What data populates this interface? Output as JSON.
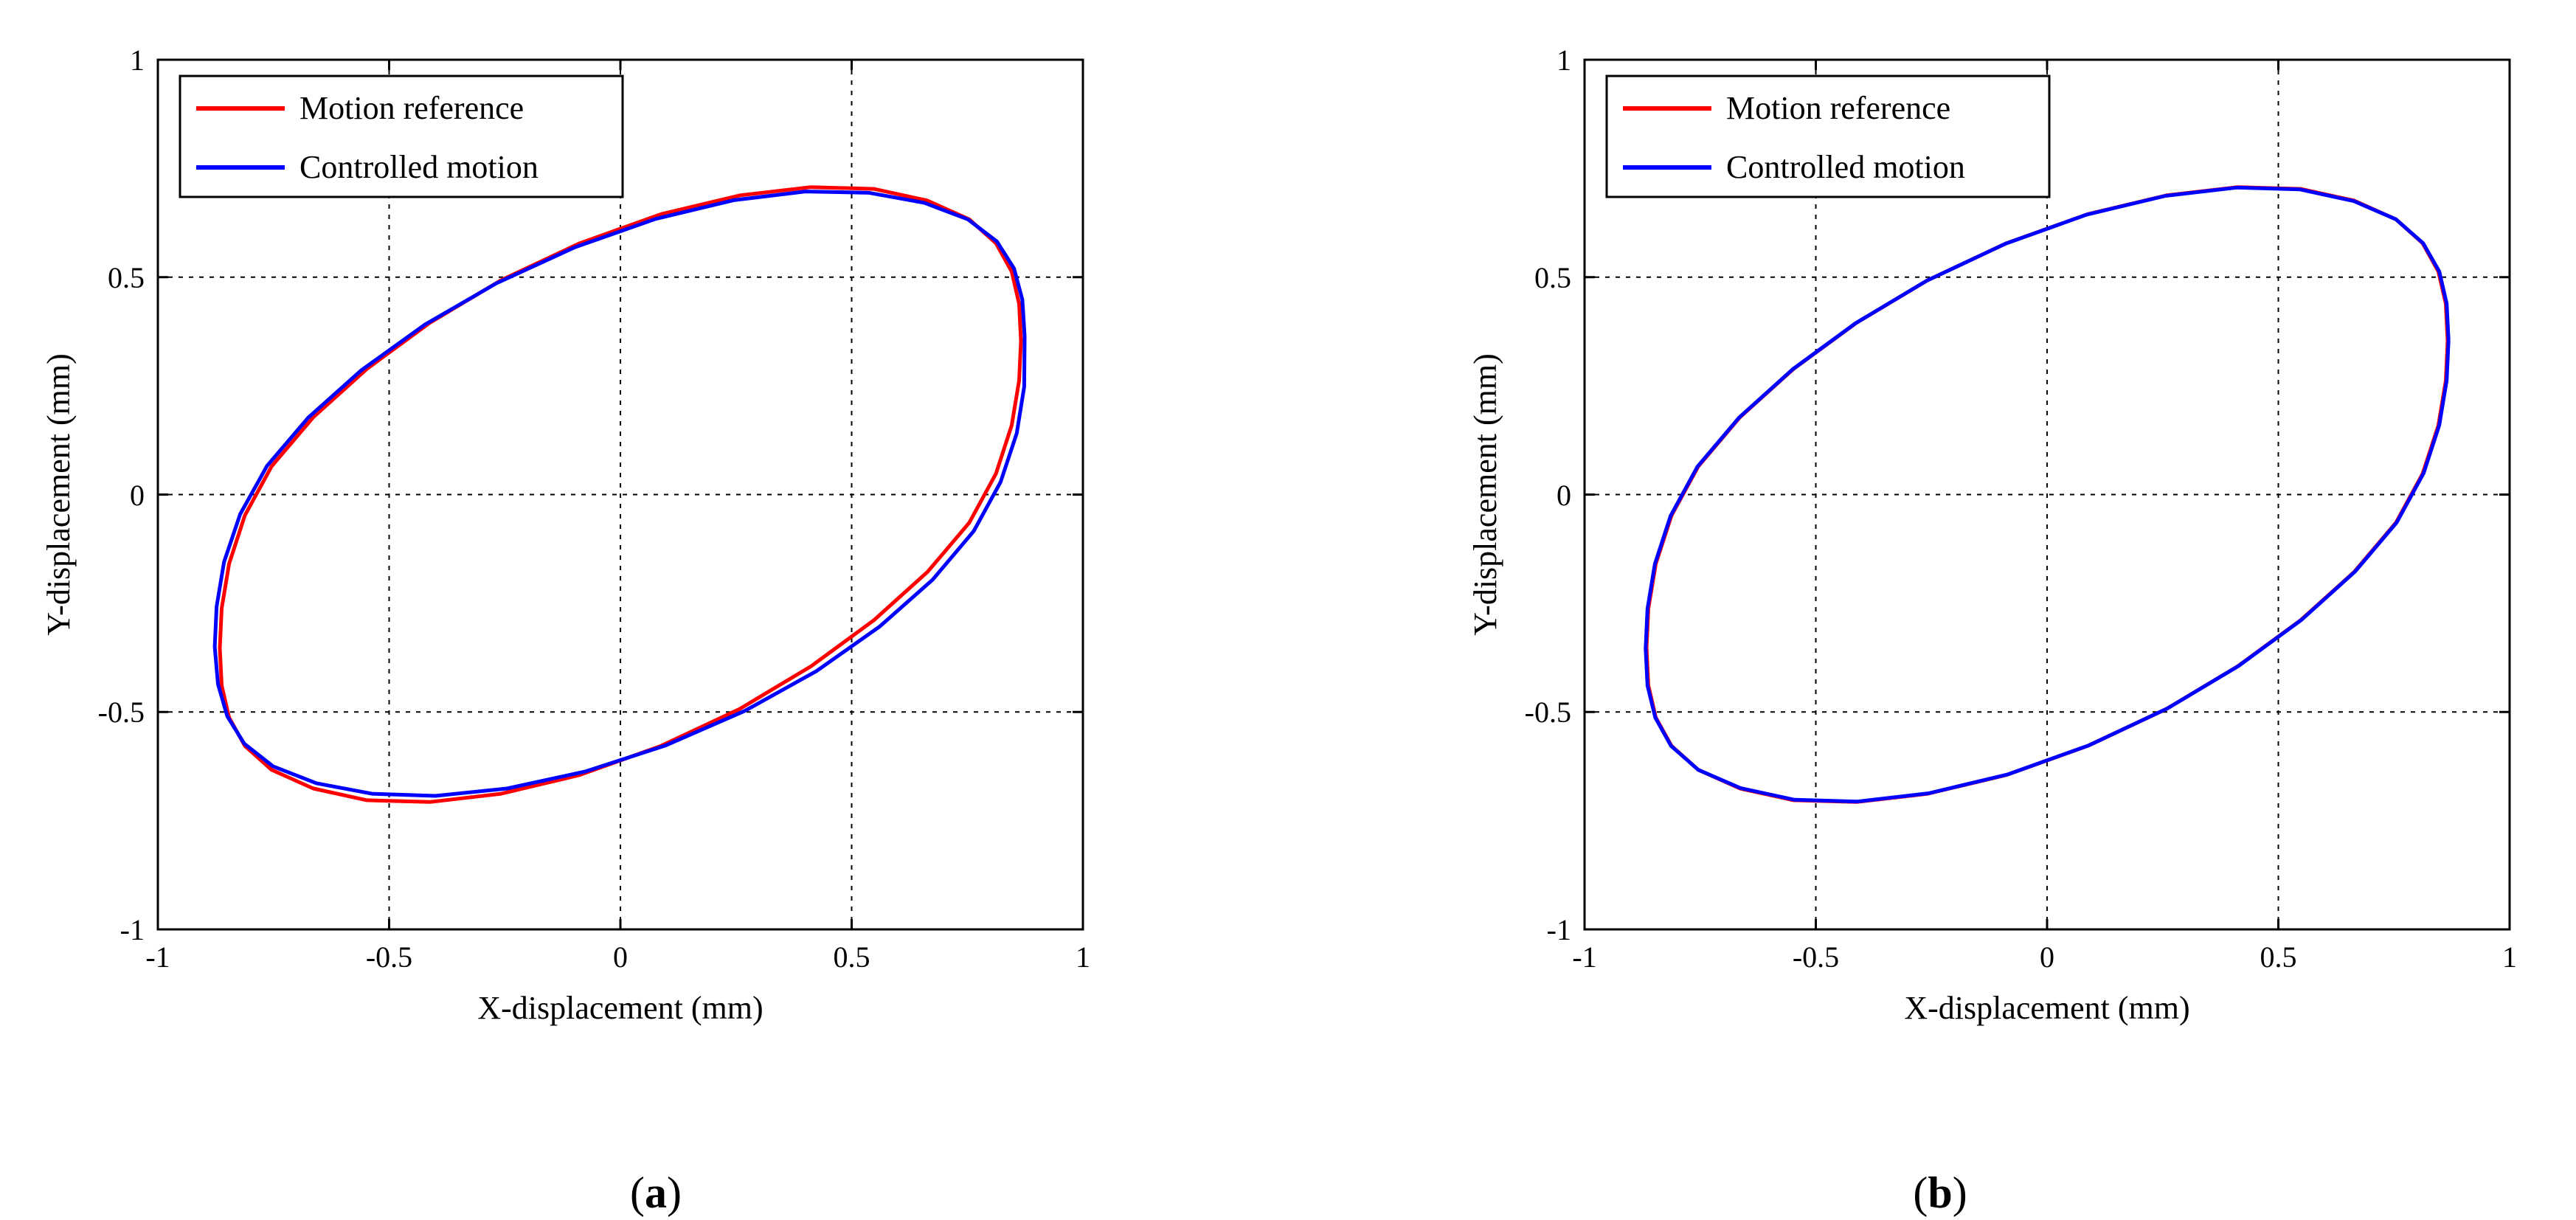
{
  "colors": {
    "reference": "#ff0000",
    "controlled": "#0000ff",
    "axis": "#000000",
    "grid": "#000000"
  },
  "chart_data": [
    {
      "type": "line",
      "panel_label": "a",
      "xlabel": "X-displacement (mm)",
      "ylabel": "Y-displacement (mm)",
      "xlim": [
        -1,
        1
      ],
      "ylim": [
        -1,
        1
      ],
      "xticks": [
        -1,
        -0.5,
        0,
        0.5,
        1
      ],
      "yticks": [
        -1,
        -0.5,
        0,
        0.5,
        1
      ],
      "xtick_labels": [
        "-1",
        "-0.5",
        "0",
        "0.5",
        "1"
      ],
      "ytick_labels": [
        "-1",
        "-0.5",
        "0",
        "0.5",
        "1"
      ],
      "grid": true,
      "legend": {
        "placement": "top-left",
        "entries": [
          "Motion reference",
          "Controlled motion"
        ]
      },
      "series": [
        {
          "name": "Motion reference",
          "x": [
            0.866,
            0.862,
            0.846,
            0.812,
            0.754,
            0.664,
            0.548,
            0.412,
            0.258,
            0.088,
            -0.088,
            -0.258,
            -0.412,
            -0.548,
            -0.664,
            -0.754,
            -0.812,
            -0.846,
            -0.862,
            -0.866,
            -0.862,
            -0.846,
            -0.812,
            -0.754,
            -0.664,
            -0.548,
            -0.412,
            -0.258,
            -0.088,
            0.088,
            0.258,
            0.412,
            0.548,
            0.664,
            0.754,
            0.812,
            0.846,
            0.862,
            0.866
          ],
          "y": [
            0.353,
            0.439,
            0.513,
            0.578,
            0.633,
            0.676,
            0.703,
            0.707,
            0.688,
            0.645,
            0.578,
            0.493,
            0.395,
            0.289,
            0.178,
            0.065,
            -0.048,
            -0.159,
            -0.262,
            -0.353,
            -0.439,
            -0.513,
            -0.578,
            -0.633,
            -0.676,
            -0.703,
            -0.707,
            -0.688,
            -0.645,
            -0.578,
            -0.493,
            -0.395,
            -0.289,
            -0.178,
            -0.065,
            0.048,
            0.159,
            0.262,
            0.353
          ]
        },
        {
          "name": "Controlled motion",
          "x": [
            0.874,
            0.869,
            0.851,
            0.814,
            0.751,
            0.657,
            0.538,
            0.4,
            0.245,
            0.076,
            -0.098,
            -0.268,
            -0.424,
            -0.56,
            -0.675,
            -0.764,
            -0.822,
            -0.857,
            -0.873,
            -0.877,
            -0.87,
            -0.85,
            -0.813,
            -0.751,
            -0.657,
            -0.537,
            -0.4,
            -0.245,
            -0.076,
            0.098,
            0.268,
            0.424,
            0.56,
            0.675,
            0.764,
            0.822,
            0.857,
            0.873,
            0.874
          ],
          "y": [
            0.364,
            0.448,
            0.52,
            0.582,
            0.633,
            0.671,
            0.694,
            0.697,
            0.677,
            0.634,
            0.569,
            0.486,
            0.39,
            0.286,
            0.177,
            0.066,
            -0.045,
            -0.155,
            -0.258,
            -0.35,
            -0.436,
            -0.51,
            -0.573,
            -0.625,
            -0.664,
            -0.688,
            -0.693,
            -0.676,
            -0.637,
            -0.577,
            -0.498,
            -0.406,
            -0.304,
            -0.196,
            -0.084,
            0.029,
            0.141,
            0.248,
            0.364
          ]
        }
      ]
    },
    {
      "type": "line",
      "panel_label": "b",
      "xlabel": "X-displacement (mm)",
      "ylabel": "Y-displacement (mm)",
      "xlim": [
        -1,
        1
      ],
      "ylim": [
        -1,
        1
      ],
      "xticks": [
        -1,
        -0.5,
        0,
        0.5,
        1
      ],
      "yticks": [
        -1,
        -0.5,
        0,
        0.5,
        1
      ],
      "xtick_labels": [
        "-1",
        "-0.5",
        "0",
        "0.5",
        "1"
      ],
      "ytick_labels": [
        "-1",
        "-0.5",
        "0",
        "0.5",
        "1"
      ],
      "grid": true,
      "legend": {
        "placement": "top-left",
        "entries": [
          "Motion reference",
          "Controlled motion"
        ]
      },
      "series": [
        {
          "name": "Motion reference",
          "x": [
            0.866,
            0.862,
            0.846,
            0.812,
            0.754,
            0.664,
            0.548,
            0.412,
            0.258,
            0.088,
            -0.088,
            -0.258,
            -0.412,
            -0.548,
            -0.664,
            -0.754,
            -0.812,
            -0.846,
            -0.862,
            -0.866,
            -0.862,
            -0.846,
            -0.812,
            -0.754,
            -0.664,
            -0.548,
            -0.412,
            -0.258,
            -0.088,
            0.088,
            0.258,
            0.412,
            0.548,
            0.664,
            0.754,
            0.812,
            0.846,
            0.862,
            0.866
          ],
          "y": [
            0.353,
            0.439,
            0.513,
            0.578,
            0.633,
            0.676,
            0.703,
            0.707,
            0.688,
            0.645,
            0.578,
            0.493,
            0.395,
            0.289,
            0.178,
            0.065,
            -0.048,
            -0.159,
            -0.262,
            -0.353,
            -0.439,
            -0.513,
            -0.578,
            -0.633,
            -0.676,
            -0.703,
            -0.707,
            -0.688,
            -0.645,
            -0.578,
            -0.493,
            -0.395,
            -0.289,
            -0.178,
            -0.065,
            0.048,
            0.159,
            0.262,
            0.353
          ]
        },
        {
          "name": "Controlled motion",
          "x": [
            0.868,
            0.864,
            0.848,
            0.813,
            0.754,
            0.663,
            0.546,
            0.41,
            0.256,
            0.086,
            -0.09,
            -0.26,
            -0.414,
            -0.55,
            -0.666,
            -0.756,
            -0.814,
            -0.848,
            -0.864,
            -0.868,
            -0.864,
            -0.847,
            -0.813,
            -0.754,
            -0.663,
            -0.546,
            -0.41,
            -0.256,
            -0.086,
            0.09,
            0.26,
            0.414,
            0.55,
            0.666,
            0.756,
            0.814,
            0.848,
            0.864,
            0.868
          ],
          "y": [
            0.354,
            0.439,
            0.513,
            0.578,
            0.633,
            0.675,
            0.702,
            0.706,
            0.687,
            0.644,
            0.577,
            0.492,
            0.394,
            0.288,
            0.177,
            0.064,
            -0.049,
            -0.16,
            -0.263,
            -0.354,
            -0.439,
            -0.513,
            -0.578,
            -0.633,
            -0.675,
            -0.702,
            -0.706,
            -0.687,
            -0.644,
            -0.577,
            -0.492,
            -0.394,
            -0.288,
            -0.177,
            -0.064,
            0.049,
            0.16,
            0.263,
            0.354
          ]
        }
      ]
    }
  ]
}
